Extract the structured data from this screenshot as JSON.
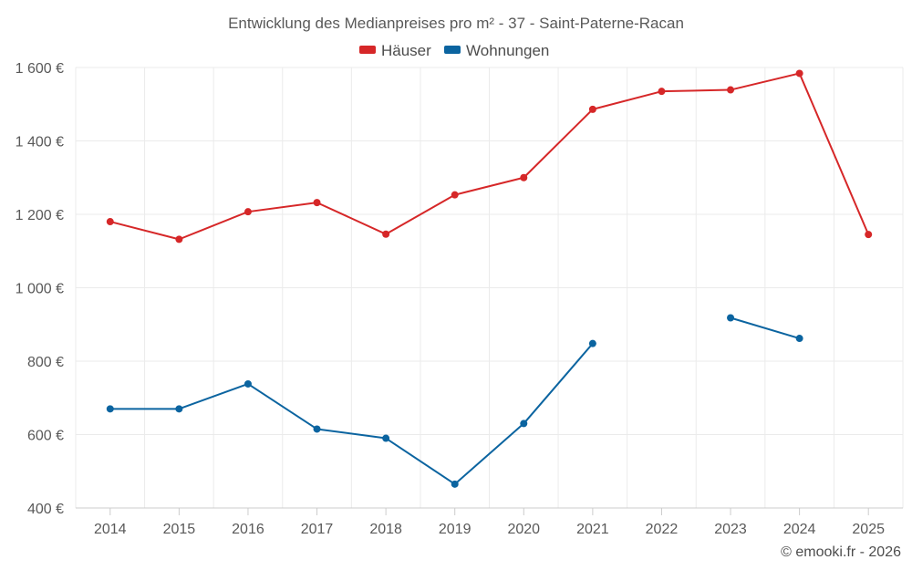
{
  "chart_data": {
    "type": "line",
    "title": "Entwicklung des Medianpreises pro m² - 37 - Saint-Paterne-Racan",
    "categories": [
      "2014",
      "2015",
      "2016",
      "2017",
      "2018",
      "2019",
      "2020",
      "2021",
      "2022",
      "2023",
      "2024",
      "2025"
    ],
    "ylim": [
      400,
      1600
    ],
    "yticks": [
      400,
      600,
      800,
      1000,
      1200,
      1400,
      1600
    ],
    "ytick_labels": [
      "400 €",
      "600 €",
      "800 €",
      "1 000 €",
      "1 200 €",
      "1 400 €",
      "1 600 €"
    ],
    "grid": true,
    "legend_position": "top-center",
    "series": [
      {
        "name": "Häuser",
        "color": "#d62728",
        "values": [
          1180,
          1132,
          1207,
          1232,
          1146,
          1253,
          1300,
          1486,
          1535,
          1539,
          1584,
          1145
        ]
      },
      {
        "name": "Wohnungen",
        "color": "#0b64a0",
        "values": [
          670,
          670,
          738,
          615,
          590,
          465,
          630,
          848,
          null,
          918,
          862,
          null
        ]
      }
    ],
    "credit": "© emooki.fr - 2026"
  }
}
